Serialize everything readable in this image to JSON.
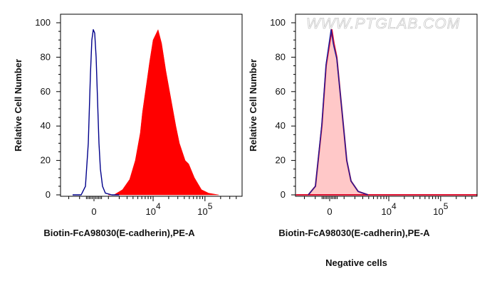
{
  "chart_data": [
    {
      "type": "area",
      "ylabel": "Relative Cell Number",
      "xlabel": "Biotin-FcA98030(E-cadherin),PE-A",
      "x_scale": "biexponential",
      "xlim": [
        -3000,
        500000
      ],
      "ylim": [
        0,
        100
      ],
      "yticks": [
        0,
        20,
        40,
        60,
        80,
        100
      ],
      "xticks": [
        {
          "value": 0,
          "label": "0"
        },
        {
          "value": 10000,
          "label": "10",
          "exp": "4"
        },
        {
          "value": 100000,
          "label": "10",
          "exp": "5"
        }
      ],
      "grid": false,
      "series": [
        {
          "style": "filled",
          "color": "#ff0000",
          "x": [
            1000,
            1470,
            2379,
            3400,
            4450,
            5590,
            6180,
            7730,
            8510,
            9990,
            12470,
            14620,
            17670,
            22060,
            27520,
            32200,
            41570,
            48600,
            62500,
            85800,
            117600,
            183000
          ],
          "y": [
            0,
            0,
            3,
            9,
            20,
            36,
            48,
            68,
            77,
            90,
            96,
            88,
            72,
            56,
            40,
            30,
            20,
            18,
            10,
            3,
            1,
            0
          ]
        },
        {
          "style": "line",
          "color": "#00008b",
          "x": [
            -1600,
            -877,
            -568,
            -373,
            -232,
            -139,
            -46,
            46,
            139,
            232,
            326,
            421,
            568,
            770,
            1280,
            2000
          ],
          "y": [
            0,
            0,
            5,
            30,
            70,
            90,
            96,
            94,
            80,
            55,
            30,
            15,
            5,
            1,
            0,
            0
          ]
        }
      ]
    },
    {
      "type": "area",
      "ylabel": "Relative Cell Number",
      "xlabel": "Biotin-FcA98030(E-cadherin),PE-A",
      "caption": "Negative cells",
      "watermark": "WWW.PTGLAB.COM",
      "x_scale": "biexponential",
      "xlim": [
        -3000,
        500000
      ],
      "ylim": [
        0,
        100
      ],
      "yticks": [
        0,
        20,
        40,
        60,
        80,
        100
      ],
      "xticks": [
        {
          "value": 0,
          "label": "0"
        },
        {
          "value": 10000,
          "label": "10",
          "exp": "4"
        },
        {
          "value": 100000,
          "label": "10",
          "exp": "5"
        }
      ],
      "grid": false,
      "series": [
        {
          "style": "filled",
          "color": "#ffc8c8",
          "stroke": "#dd1030",
          "x": [
            -3000,
            -1603,
            -987,
            -518,
            -232,
            139,
            278,
            469,
            823,
            1220,
            1603,
            2379,
            3880,
            500000
          ],
          "y": [
            0,
            0,
            5,
            40,
            75,
            96,
            88,
            80,
            50,
            20,
            8,
            2,
            0,
            0
          ]
        },
        {
          "style": "line",
          "color": "#1a1a9a",
          "x": [
            -1603,
            -987,
            -518,
            -232,
            92,
            230,
            278,
            469,
            823,
            1220,
            1603,
            2379,
            3880
          ],
          "y": [
            0,
            5,
            41,
            76,
            96,
            88,
            86,
            79,
            50,
            20,
            8,
            2,
            0
          ]
        }
      ]
    }
  ]
}
